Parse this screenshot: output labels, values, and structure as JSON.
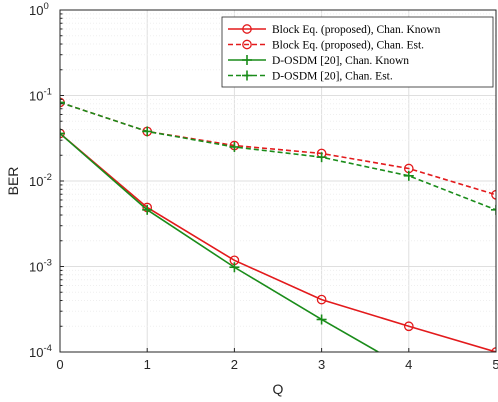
{
  "chart_data": {
    "type": "line",
    "xlabel": "Q",
    "ylabel": "BER",
    "xlim": [
      0,
      5
    ],
    "ylim": [
      0.0001,
      1
    ],
    "yscale": "log",
    "grid": true,
    "legend_position": "top-right",
    "x_ticks": [
      "0",
      "1",
      "2",
      "3",
      "4",
      "5"
    ],
    "y_ticks": [
      {
        "value": 1,
        "mantissa": "10",
        "exp": "0"
      },
      {
        "value": 0.1,
        "mantissa": "10",
        "exp": "-1"
      },
      {
        "value": 0.01,
        "mantissa": "10",
        "exp": "-2"
      },
      {
        "value": 0.001,
        "mantissa": "10",
        "exp": "-3"
      },
      {
        "value": 0.0001,
        "mantissa": "10",
        "exp": "-4"
      }
    ],
    "series": [
      {
        "name": "Block Eq. (proposed), Chan. Known",
        "color": "#e31a1c",
        "dash": "solid",
        "marker": "circle",
        "x": [
          0,
          1,
          2,
          3,
          4,
          5
        ],
        "y": [
          0.036,
          0.0049,
          0.00118,
          0.00041,
          0.0002,
          0.0001
        ]
      },
      {
        "name": "Block Eq. (proposed), Chan. Est.",
        "color": "#e31a1c",
        "dash": "dashed",
        "marker": "circle",
        "x": [
          0,
          1,
          2,
          3,
          4,
          5
        ],
        "y": [
          0.083,
          0.038,
          0.026,
          0.021,
          0.014,
          0.0069
        ]
      },
      {
        "name": "D-OSDM [20], Chan. Known",
        "color": "#1a8c1a",
        "dash": "solid",
        "marker": "plus",
        "x": [
          0,
          1,
          2,
          3,
          3.65
        ],
        "y": [
          0.036,
          0.0046,
          0.00098,
          0.00024,
          0.0001
        ]
      },
      {
        "name": "D-OSDM [20], Chan. Est.",
        "color": "#1a8c1a",
        "dash": "dashed",
        "marker": "plus",
        "x": [
          0,
          1,
          2,
          3,
          4,
          5
        ],
        "y": [
          0.083,
          0.038,
          0.025,
          0.019,
          0.0115,
          0.0046
        ]
      }
    ]
  }
}
